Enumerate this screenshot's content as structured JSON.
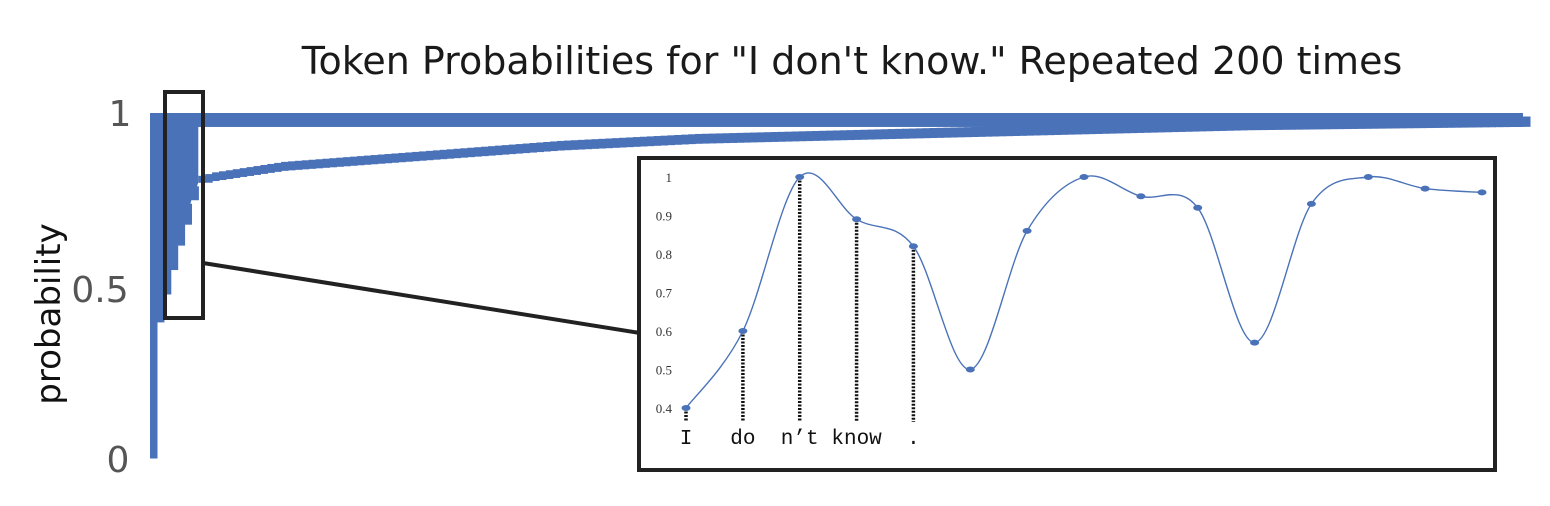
{
  "chart_data": [
    {
      "type": "area",
      "title": "Token Probabilities for \"I don't know.\" Repeated 200 times",
      "ylabel": "probability",
      "xlabel": "",
      "ylim": [
        0,
        1
      ],
      "yticks": [
        "0",
        "0.5",
        "1"
      ],
      "grid": false,
      "color": "#4a72b8",
      "n_repeats": 200,
      "first_repeats_envelope": [
        {
          "x": 1,
          "y": 0.96
        },
        {
          "x": 2,
          "y": 0.52
        },
        {
          "x": 3,
          "y": 0.58
        },
        {
          "x": 4,
          "y": 0.62
        },
        {
          "x": 5,
          "y": 0.69
        },
        {
          "x": 6,
          "y": 0.74
        },
        {
          "x": 7,
          "y": 0.79
        },
        {
          "x": 8,
          "y": 0.82
        },
        {
          "x": 10,
          "y": 0.83
        },
        {
          "x": 20,
          "y": 0.86
        },
        {
          "x": 40,
          "y": 0.89
        },
        {
          "x": 60,
          "y": 0.92
        },
        {
          "x": 80,
          "y": 0.94
        },
        {
          "x": 120,
          "y": 0.96
        },
        {
          "x": 160,
          "y": 0.98
        },
        {
          "x": 200,
          "y": 0.99
        }
      ],
      "first_repeats_minimum": [
        {
          "x": 1,
          "y": 0.01
        },
        {
          "x": 1.5,
          "y": 0.25
        },
        {
          "x": 2,
          "y": 0.4
        },
        {
          "x": 3,
          "y": 0.48
        },
        {
          "x": 4,
          "y": 0.55
        },
        {
          "x": 5,
          "y": 0.62
        },
        {
          "x": 6,
          "y": 0.68
        },
        {
          "x": 7,
          "y": 0.75
        },
        {
          "x": 8,
          "y": 0.8
        }
      ]
    },
    {
      "type": "line",
      "ylim": [
        0.4,
        1
      ],
      "yticks": [
        "0.4",
        "0.5",
        "0.6",
        "0.7",
        "0.8",
        "0.9",
        "1"
      ],
      "tokens": [
        "I",
        "do",
        "n’t",
        "know",
        "."
      ],
      "values": [
        0.4,
        0.6,
        1.0,
        0.89,
        0.82,
        0.5,
        0.86,
        1.0,
        0.95,
        0.92,
        0.57,
        0.93,
        1.0,
        0.97,
        0.96
      ],
      "color": "#4a72b8"
    }
  ]
}
